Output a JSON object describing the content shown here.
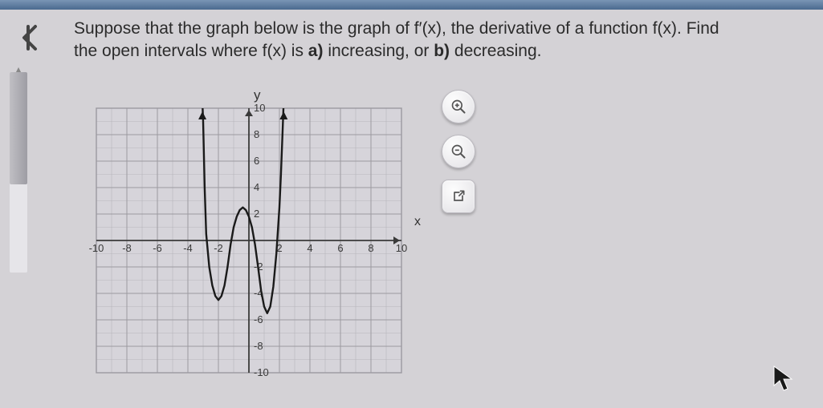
{
  "question": {
    "line1": "Suppose that the graph below is the graph of f′(x), the derivative of a function f(x). Find",
    "line2_prefix": "the open intervals where f(x) is ",
    "part_a": "a)",
    "increasing": " increasing, or ",
    "part_b": "b)",
    "decreasing": " decreasing."
  },
  "axes": {
    "y": "y",
    "x": "x"
  },
  "chart": {
    "type": "line-grid",
    "xlim": [
      -10,
      10
    ],
    "ylim": [
      -10,
      10
    ],
    "xtick_step": 2,
    "ytick_step": 2,
    "xtick_labels": [
      "-10",
      "-8",
      "-6",
      "-4",
      "-2",
      "",
      "2",
      "4",
      "6",
      "8",
      "10"
    ],
    "ytick_labels": [
      "10",
      "8",
      "6",
      "4",
      "2",
      "",
      "-2",
      "-4",
      "-6",
      "-8",
      "-10"
    ],
    "minor_step": 1,
    "grid_color": "#9c9aa0",
    "minor_grid_color": "#b8b6bc",
    "background_color": "#d6d4da",
    "axis_color": "#3a3a3a",
    "curve_color": "#1a1a1a",
    "curve_width": 2.4,
    "tick_font_size": 13,
    "tick_color": "#3a3a3a",
    "curve_points": [
      [
        -3.05,
        10.5
      ],
      [
        -3.0,
        9.0
      ],
      [
        -2.9,
        4.0
      ],
      [
        -2.8,
        0.5
      ],
      [
        -2.6,
        -2.0
      ],
      [
        -2.4,
        -3.4
      ],
      [
        -2.2,
        -4.2
      ],
      [
        -2.0,
        -4.5
      ],
      [
        -1.8,
        -4.2
      ],
      [
        -1.6,
        -3.4
      ],
      [
        -1.4,
        -2.0
      ],
      [
        -1.2,
        -0.3
      ],
      [
        -1.0,
        1.0
      ],
      [
        -0.8,
        1.8
      ],
      [
        -0.6,
        2.3
      ],
      [
        -0.4,
        2.5
      ],
      [
        -0.2,
        2.3
      ],
      [
        0.0,
        1.8
      ],
      [
        0.2,
        1.0
      ],
      [
        0.4,
        -0.3
      ],
      [
        0.6,
        -2.0
      ],
      [
        0.8,
        -3.8
      ],
      [
        1.0,
        -5.0
      ],
      [
        1.2,
        -5.5
      ],
      [
        1.4,
        -5.0
      ],
      [
        1.6,
        -3.5
      ],
      [
        1.8,
        -1.0
      ],
      [
        2.0,
        2.5
      ],
      [
        2.1,
        5.0
      ],
      [
        2.2,
        8.0
      ],
      [
        2.28,
        10.5
      ]
    ]
  },
  "colors": {
    "page_bg": "#d4d2d6",
    "topbar_from": "#7a95b5",
    "topbar_to": "#4a6a8f",
    "text": "#2b2b2b"
  }
}
